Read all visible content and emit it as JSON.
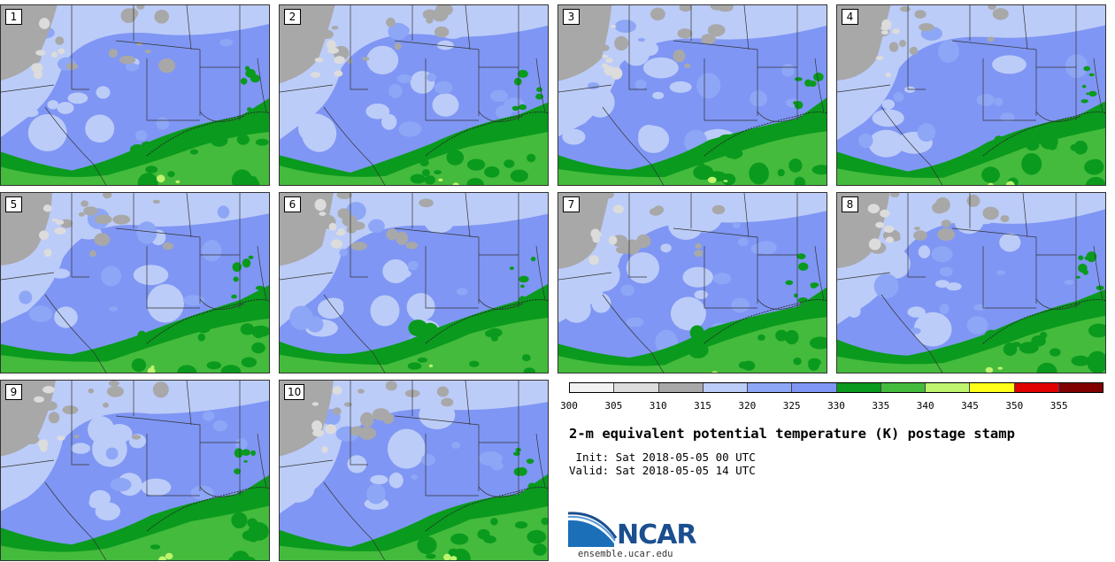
{
  "title": "2-m equivalent potential temperature (K) postage stamp",
  "init_line": " Init: Sat 2018-05-05 00 UTC",
  "valid_line": "Valid: Sat 2018-05-05 14 UTC",
  "logo_text": "NCAR",
  "site": "ensemble.ucar.edu",
  "colors": {
    "panel_border": "#333333",
    "logo_blue": "#1b4f8f"
  },
  "colorbar": {
    "ticks": [
      "300",
      "305",
      "310",
      "315",
      "320",
      "325",
      "330",
      "335",
      "340",
      "345",
      "350",
      "355"
    ],
    "colors": [
      "#f2f2f2",
      "#dcdcdc",
      "#a8a8a8",
      "#bcccf8",
      "#8ea6f6",
      "#7f96f4",
      "#0a9a1e",
      "#44bb3c",
      "#bff46e",
      "#ffff1a",
      "#e00000",
      "#800000"
    ]
  },
  "panels": [
    {
      "num": "1"
    },
    {
      "num": "2"
    },
    {
      "num": "3"
    },
    {
      "num": "4"
    },
    {
      "num": "5"
    },
    {
      "num": "6"
    },
    {
      "num": "7"
    },
    {
      "num": "8"
    },
    {
      "num": "9"
    },
    {
      "num": "10"
    }
  ]
}
